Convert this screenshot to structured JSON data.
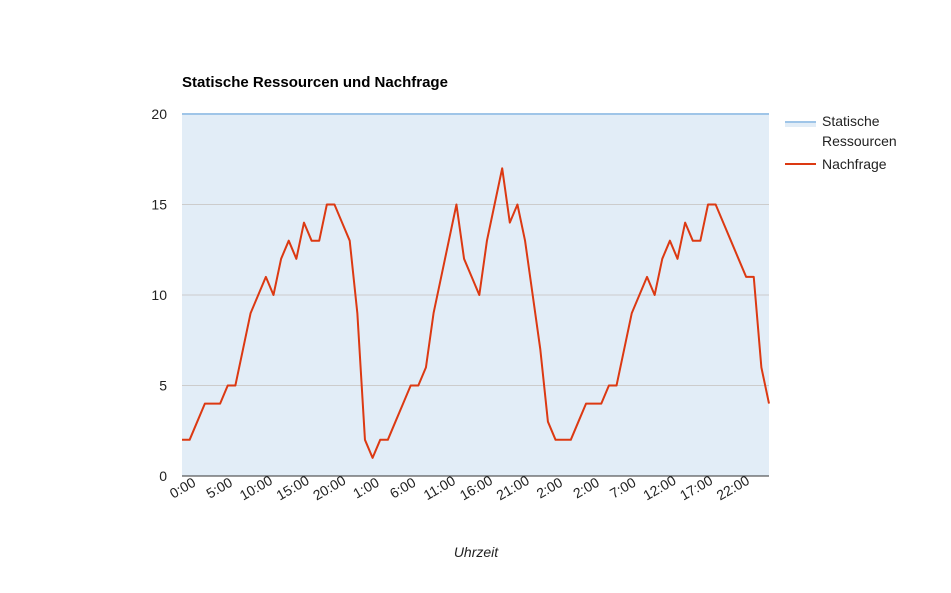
{
  "chart_data": {
    "type": "area",
    "title": "Statische Ressourcen und Nachfrage",
    "xlabel": "Uhrzeit",
    "ylabel": "",
    "ylim": [
      0,
      20
    ],
    "yticks": [
      0,
      5,
      10,
      15,
      20
    ],
    "grid": true,
    "legend_position": "right",
    "x_tick_labels": [
      "0:00",
      "5:00",
      "10:00",
      "15:00",
      "20:00",
      "1:00",
      "6:00",
      "11:00",
      "16:00",
      "21:00",
      "2:00",
      "2:00",
      "7:00",
      "12:00",
      "17:00",
      "22:00"
    ],
    "series": [
      {
        "name": "Statische Ressourcen",
        "kind": "area",
        "color": "#9fc5e8",
        "fill": "#e2edf7",
        "values": [
          20,
          20,
          20,
          20,
          20,
          20,
          20,
          20,
          20,
          20,
          20,
          20,
          20,
          20,
          20,
          20,
          20,
          20,
          20,
          20,
          20,
          20,
          20,
          20,
          20,
          20,
          20,
          20,
          20,
          20,
          20,
          20,
          20,
          20,
          20,
          20,
          20,
          20,
          20,
          20,
          20,
          20,
          20,
          20,
          20,
          20,
          20,
          20,
          20,
          20,
          20,
          20,
          20,
          20,
          20,
          20,
          20,
          20,
          20,
          20,
          20,
          20,
          20,
          20,
          20,
          20,
          20,
          20,
          20,
          20,
          20,
          20,
          20,
          20,
          20,
          20,
          20
        ]
      },
      {
        "name": "Nachfrage",
        "kind": "line",
        "color": "#dc3912",
        "values": [
          2,
          2,
          3,
          4,
          4,
          4,
          5,
          5,
          7,
          9,
          10,
          11,
          10,
          12,
          13,
          12,
          14,
          13,
          13,
          15,
          15,
          14,
          13,
          9,
          2,
          1,
          2,
          2,
          3,
          4,
          5,
          5,
          6,
          9,
          11,
          13,
          15,
          12,
          11,
          10,
          13,
          15,
          17,
          14,
          15,
          13,
          10,
          7,
          3,
          2,
          2,
          2,
          3,
          4,
          4,
          4,
          5,
          5,
          7,
          9,
          10,
          11,
          10,
          12,
          13,
          12,
          14,
          13,
          13,
          15,
          15,
          14,
          13,
          12,
          11,
          11,
          6,
          4
        ]
      }
    ]
  }
}
